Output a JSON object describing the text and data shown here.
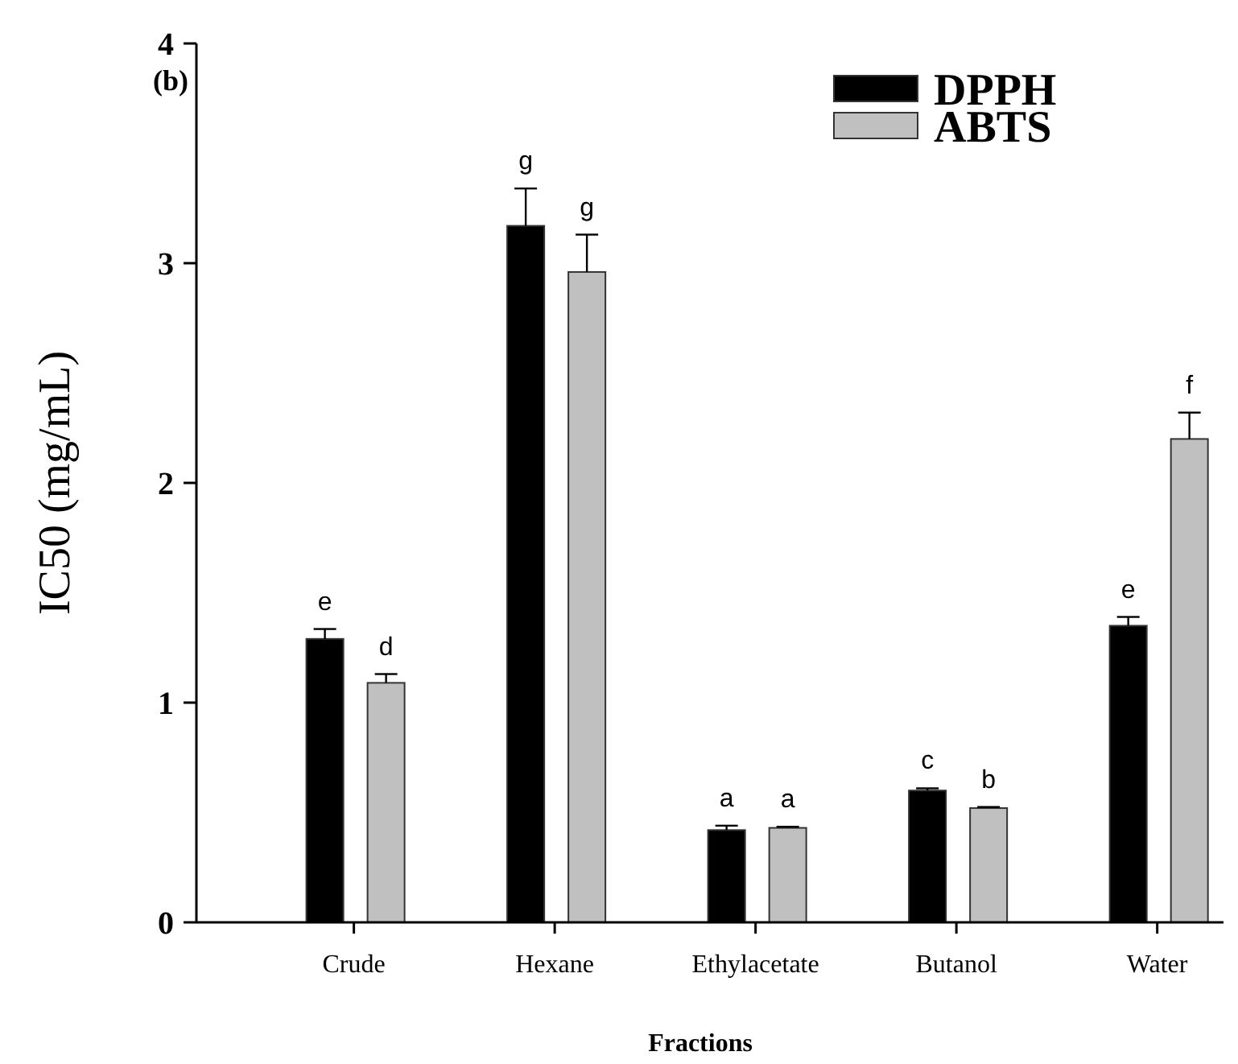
{
  "chart_data": {
    "type": "bar",
    "xlabel": "Fractions",
    "ylabel": "IC50 (mg/mL)",
    "categories": [
      "Crude",
      "Hexane",
      "Ethylacetate",
      "Butanol",
      "Water"
    ],
    "series": [
      {
        "name": "DPPH",
        "color": "#000000",
        "values": [
          1.29,
          3.17,
          0.42,
          0.6,
          1.35
        ],
        "errors": [
          0.045,
          0.17,
          0.02,
          0.01,
          0.04
        ]
      },
      {
        "name": "ABTS",
        "color": "#c0c0c0",
        "values": [
          1.09,
          2.96,
          0.43,
          0.52,
          2.2
        ],
        "errors": [
          0.04,
          0.17,
          0.005,
          0.005,
          0.12
        ]
      }
    ],
    "ylim": [
      0,
      4
    ],
    "yticks": [
      0,
      1,
      2,
      3,
      4
    ],
    "grid": false,
    "legend": "top right",
    "annotations": [
      "(b)",
      "e",
      "d",
      "g",
      "g",
      "a",
      "a",
      "c",
      "b",
      "e",
      "f"
    ]
  }
}
